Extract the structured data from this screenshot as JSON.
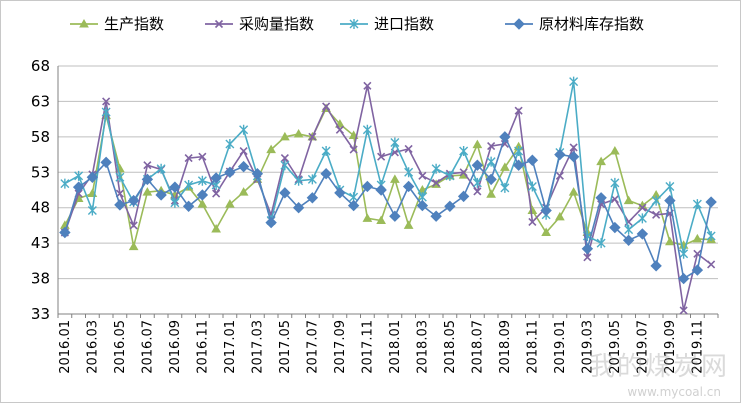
{
  "watermark": {
    "text": "我的煤炭网",
    "url": "www.mycoal.cn"
  },
  "chart_data": {
    "type": "line",
    "title": "",
    "xlabel": "",
    "ylabel": "",
    "ylim": [
      33,
      68
    ],
    "yticks": [
      33,
      38,
      43,
      48,
      53,
      58,
      63,
      68
    ],
    "grid": "horizontal",
    "legend_position": "top",
    "x_tick_labels": [
      "2016.01",
      "2016.03",
      "2016.05",
      "2016.07",
      "2016.09",
      "2016.11",
      "2017.01",
      "2017.03",
      "2017.05",
      "2017.07",
      "2017.09",
      "2017.11",
      "2018.01",
      "2018.03",
      "2018.05",
      "2018.07",
      "2018.09",
      "2018.11",
      "2019.01",
      "2019.03",
      "2019.05",
      "2019.07",
      "2019.09",
      "2019.11"
    ],
    "x": [
      "2016.01",
      "2016.02",
      "2016.03",
      "2016.04",
      "2016.05",
      "2016.06",
      "2016.07",
      "2016.08",
      "2016.09",
      "2016.10",
      "2016.11",
      "2016.12",
      "2017.01",
      "2017.02",
      "2017.03",
      "2017.04",
      "2017.05",
      "2017.06",
      "2017.07",
      "2017.08",
      "2017.09",
      "2017.10",
      "2017.11",
      "2017.12",
      "2018.01",
      "2018.02",
      "2018.03",
      "2018.04",
      "2018.05",
      "2018.06",
      "2018.07",
      "2018.08",
      "2018.09",
      "2018.10",
      "2018.11",
      "2018.12",
      "2019.01",
      "2019.02",
      "2019.03",
      "2019.04",
      "2019.05",
      "2019.06",
      "2019.07",
      "2019.08",
      "2019.09",
      "2019.10",
      "2019.11",
      "2019.12"
    ],
    "series": [
      {
        "name": "生产指数",
        "color": "#9bbb59",
        "marker": "triangle",
        "values": [
          45.5,
          49.3,
          50.0,
          61.0,
          53.5,
          42.5,
          50.2,
          50.4,
          49.8,
          50.9,
          48.5,
          45.0,
          48.5,
          50.2,
          52.0,
          56.2,
          58.0,
          58.4,
          58.0,
          62.0,
          59.8,
          58.2,
          46.5,
          46.2,
          52.0,
          45.5,
          50.5,
          51.3,
          52.5,
          52.6,
          56.9,
          49.9,
          53.7,
          56.6,
          47.6,
          44.5,
          46.7,
          50.2,
          44.5,
          54.5,
          56.0,
          49.0,
          48.3,
          49.8,
          43.2,
          42.7,
          43.6,
          43.5
        ]
      },
      {
        "name": "采购量指数",
        "color": "#8064a2",
        "marker": "x",
        "values": [
          44.5,
          50.0,
          52.7,
          63.0,
          50.0,
          45.5,
          54.0,
          53.4,
          49.0,
          55.0,
          55.2,
          50.0,
          53.1,
          56.0,
          52.0,
          47.0,
          55.0,
          52.0,
          58.0,
          62.3,
          59.0,
          56.2,
          65.2,
          55.2,
          55.8,
          56.3,
          52.5,
          51.5,
          52.8,
          53.0,
          50.3,
          56.7,
          57.0,
          61.7,
          46.0,
          48.0,
          52.5,
          56.5,
          41.0,
          48.5,
          49.2,
          46.0,
          48.0,
          47.0,
          47.2,
          33.5,
          41.5,
          40.0
        ]
      },
      {
        "name": "进口指数",
        "color": "#4bacc6",
        "marker": "asterisk",
        "values": [
          51.4,
          52.5,
          47.6,
          61.5,
          52.3,
          48.8,
          52.0,
          53.5,
          48.7,
          51.2,
          51.8,
          51.2,
          57.0,
          59.0,
          52.5,
          46.2,
          54.0,
          51.8,
          52.0,
          56.0,
          50.5,
          49.5,
          59.0,
          51.2,
          57.2,
          53.0,
          49.5,
          53.5,
          52.5,
          56.0,
          51.5,
          54.5,
          50.8,
          56.0,
          51.0,
          47.0,
          55.8,
          65.8,
          44.0,
          43.0,
          51.5,
          44.9,
          46.5,
          49.0,
          51.0,
          41.5,
          48.5,
          44.0
        ]
      },
      {
        "name": "原材料库存指数",
        "color": "#4f81bd",
        "marker": "diamond",
        "values": [
          44.5,
          50.9,
          52.3,
          54.4,
          48.4,
          49.0,
          52.0,
          49.8,
          50.9,
          48.2,
          49.8,
          52.2,
          53.0,
          53.8,
          52.8,
          45.9,
          50.1,
          48.0,
          49.4,
          52.8,
          50.1,
          48.3,
          51.0,
          50.5,
          46.8,
          51.0,
          48.3,
          46.8,
          48.2,
          49.6,
          54.0,
          52.0,
          58.0,
          54.0,
          54.7,
          47.6,
          55.5,
          55.2,
          42.2,
          49.4,
          45.2,
          43.4,
          44.3,
          39.8,
          49.0,
          38.0,
          39.2,
          48.8
        ]
      }
    ]
  }
}
